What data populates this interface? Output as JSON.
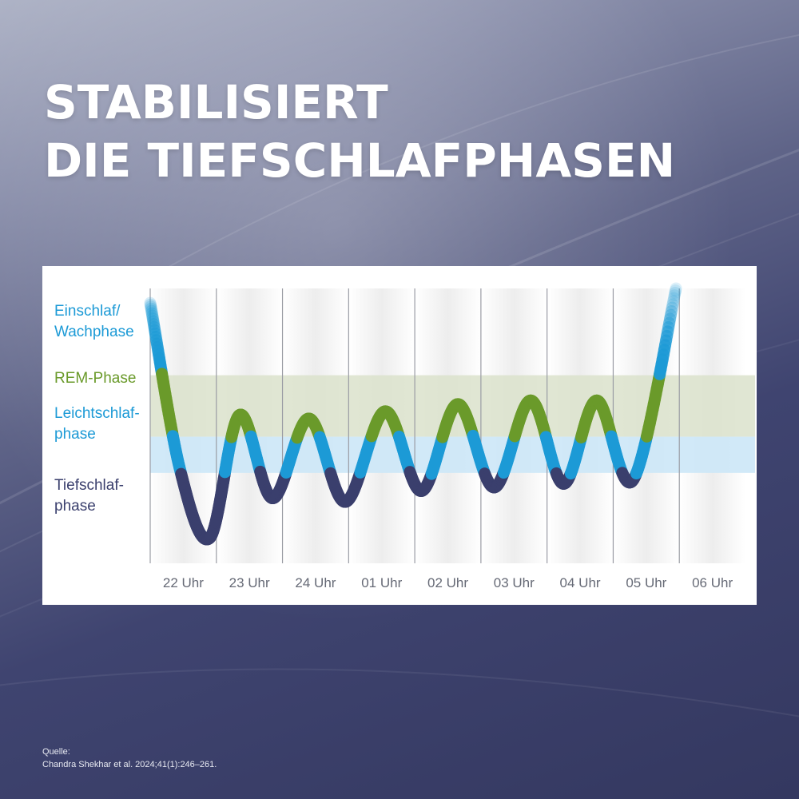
{
  "headline": {
    "line1": "STABILISIERT",
    "line2": "DIE TIEFSCHLAFPHASEN"
  },
  "chart_data": {
    "type": "line",
    "title": "",
    "xlabel": "",
    "ylabel": "",
    "categories": [
      "22 Uhr",
      "23 Uhr",
      "24 Uhr",
      "01 Uhr",
      "02 Uhr",
      "03 Uhr",
      "04 Uhr",
      "05 Uhr",
      "06 Uhr"
    ],
    "phases": [
      {
        "key": "wake",
        "label": "Einschlaf/\nWachphase",
        "color": "#1c9ad6"
      },
      {
        "key": "rem",
        "label": "REM-Phase",
        "color": "#6a9a2a"
      },
      {
        "key": "light",
        "label": "Leichtschlaf-\nphase",
        "color": "#1c9ad6"
      },
      {
        "key": "deep",
        "label": "Tiefschlaf-\nphase",
        "color": "#3a3f6d"
      }
    ],
    "series": [
      {
        "x": [
          22.0,
          22.45,
          22.9,
          23.35,
          23.85,
          24.4,
          24.95,
          25.55,
          26.1,
          26.65,
          27.2,
          27.75,
          28.25,
          28.75,
          29.3,
          29.95
        ],
        "y": [
          4.3,
          2.0,
          1.05,
          2.75,
          1.6,
          2.7,
          1.55,
          2.8,
          1.7,
          2.9,
          1.75,
          2.95,
          1.8,
          2.95,
          1.85,
          4.5
        ]
      }
    ],
    "phase_bands": {
      "deep": [
        0.7,
        1.95
      ],
      "light": [
        1.95,
        2.45
      ],
      "rem": [
        2.45,
        3.3
      ],
      "wake": [
        3.3,
        4.5
      ]
    },
    "colors": {
      "deep": "#3a3f6d",
      "light": "#1c9ad6",
      "rem": "#6a9a2a",
      "wake_top": "#d8ecf8",
      "rem_band": "#dbe2cb",
      "light_band": "#cce7f7",
      "col_shade": "#ededed",
      "tick_text": "#666a76"
    },
    "grid": true
  },
  "source": {
    "label": "Quelle:",
    "citation": "Chandra Shekhar et al. 2024;41(1):246–261."
  }
}
